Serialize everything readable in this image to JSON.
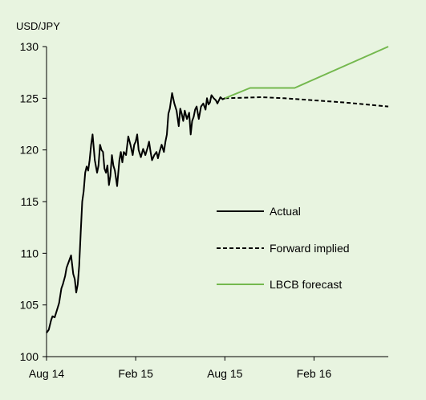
{
  "chart_data": {
    "type": "line",
    "ylabel": "USD/JPY",
    "ylim": [
      100,
      130
    ],
    "y_ticks": [
      100,
      105,
      110,
      115,
      120,
      125,
      130
    ],
    "x_ticks": [
      "Aug 14",
      "Feb 15",
      "Aug 15",
      "Feb 16"
    ],
    "x_tick_positions": [
      0,
      6,
      12,
      18
    ],
    "xlim": [
      0,
      23
    ],
    "background": "#e8f4e0",
    "grid": false,
    "legend_placement": "right-middle",
    "series": [
      {
        "name": "Actual",
        "color": "#000000",
        "style": "solid",
        "x": [
          0,
          0.15,
          0.3,
          0.4,
          0.55,
          0.7,
          0.85,
          1.0,
          1.1,
          1.25,
          1.35,
          1.5,
          1.65,
          1.8,
          1.9,
          2.0,
          2.1,
          2.2,
          2.3,
          2.4,
          2.5,
          2.6,
          2.7,
          2.8,
          2.9,
          3.0,
          3.1,
          3.25,
          3.4,
          3.5,
          3.6,
          3.7,
          3.8,
          3.9,
          4.0,
          4.1,
          4.2,
          4.3,
          4.4,
          4.5,
          4.6,
          4.75,
          4.9,
          5.0,
          5.1,
          5.2,
          5.35,
          5.5,
          5.65,
          5.8,
          5.9,
          6.0,
          6.1,
          6.2,
          6.35,
          6.5,
          6.65,
          6.8,
          6.9,
          7.0,
          7.1,
          7.25,
          7.4,
          7.5,
          7.6,
          7.75,
          7.9,
          8.0,
          8.1,
          8.2,
          8.3,
          8.45,
          8.6,
          8.75,
          8.9,
          9.0,
          9.1,
          9.2,
          9.3,
          9.45,
          9.6,
          9.7,
          9.8,
          9.9,
          10.0,
          10.1,
          10.25,
          10.4,
          10.55,
          10.7,
          10.8,
          10.9,
          11.0,
          11.1,
          11.25,
          11.4,
          11.5,
          11.6,
          11.7,
          11.85,
          12.0
        ],
        "y": [
          102.3,
          102.6,
          103.5,
          103.9,
          103.8,
          104.5,
          105.2,
          106.6,
          107.0,
          107.8,
          108.6,
          109.2,
          109.8,
          108.0,
          107.5,
          106.2,
          107.0,
          108.8,
          112.0,
          115.0,
          116.0,
          117.8,
          118.4,
          118.0,
          119.0,
          120.5,
          121.5,
          119.0,
          117.8,
          118.5,
          120.5,
          120.0,
          119.8,
          118.2,
          117.8,
          118.5,
          116.6,
          117.5,
          119.5,
          118.5,
          118.0,
          116.5,
          119.0,
          119.8,
          118.8,
          119.8,
          119.5,
          121.3,
          120.5,
          119.5,
          120.5,
          120.8,
          121.5,
          120.0,
          119.3,
          120.1,
          119.5,
          120.2,
          120.8,
          119.8,
          119.0,
          119.5,
          119.8,
          119.2,
          119.8,
          120.5,
          119.8,
          120.8,
          121.5,
          123.5,
          124.0,
          125.5,
          124.5,
          123.8,
          122.3,
          124.0,
          123.5,
          122.8,
          123.8,
          123.0,
          123.6,
          121.5,
          122.8,
          123.2,
          123.9,
          124.2,
          123.0,
          124.2,
          124.5,
          123.9,
          125.0,
          124.4,
          124.6,
          125.3,
          125.0,
          124.8,
          124.5,
          124.8,
          125.1,
          124.9,
          125.0
        ]
      },
      {
        "name": "Forward implied",
        "color": "#000000",
        "style": "dashed",
        "x": [
          12.0,
          14.5,
          16.0,
          18.0,
          20.0,
          23.0
        ],
        "y": [
          125.0,
          125.1,
          125.0,
          124.8,
          124.6,
          124.2
        ]
      },
      {
        "name": "LBCB forecast",
        "color": "#74b84e",
        "style": "solid",
        "x": [
          12.0,
          13.7,
          16.7,
          23.0
        ],
        "y": [
          125.0,
          126.0,
          126.0,
          130.0
        ]
      }
    ]
  }
}
